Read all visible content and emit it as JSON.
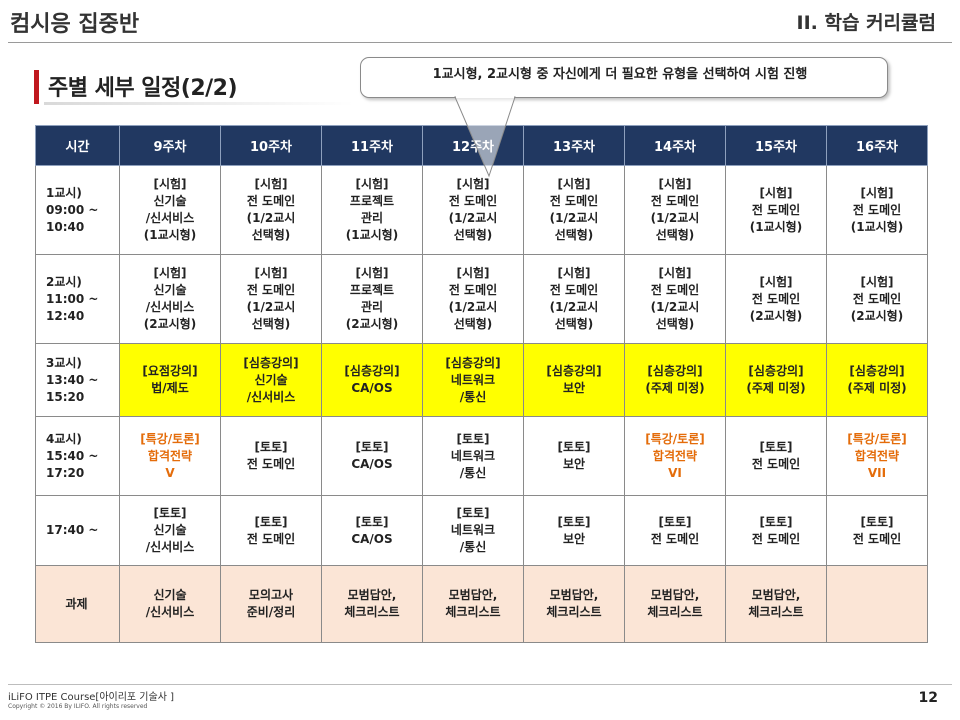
{
  "header": {
    "left_title": "컴시응 집중반",
    "right_title": "II. 학습 커리큘럼"
  },
  "section": {
    "title": "주별 세부 일정(2/2)"
  },
  "callout": {
    "text": "1교시형, 2교시형 중 자신에게 더 필요한 유형을 선택하여 시험 진행"
  },
  "table": {
    "headers": [
      "시간",
      "9주차",
      "10주차",
      "11주차",
      "12주차",
      "13주차",
      "14주차",
      "15주차",
      "16주차"
    ],
    "rows": [
      {
        "time": "1교시)\n  09:00 ~\n    10:40",
        "cells": [
          "[시험]\n신기술\n/신서비스\n(1교시형)",
          "[시험]\n전 도메인\n(1/2교시\n선택형)",
          "[시험]\n프로젝트\n관리\n(1교시형)",
          "[시험]\n전 도메인\n(1/2교시\n선택형)",
          "[시험]\n전 도메인\n(1/2교시\n선택형)",
          "[시험]\n전 도메인\n(1/2교시\n선택형)",
          "[시험]\n전 도메인\n(1교시형)",
          "[시험]\n전 도메인\n(1교시형)"
        ]
      },
      {
        "time": "2교시)\n  11:00 ~\n    12:40",
        "cells": [
          "[시험]\n신기술\n/신서비스\n(2교시형)",
          "[시험]\n전 도메인\n(1/2교시\n선택형)",
          "[시험]\n프로젝트\n관리\n(2교시형)",
          "[시험]\n전 도메인\n(1/2교시\n선택형)",
          "[시험]\n전 도메인\n(1/2교시\n선택형)",
          "[시험]\n전 도메인\n(1/2교시\n선택형)",
          "[시험]\n전 도메인\n(2교시형)",
          "[시험]\n전 도메인\n(2교시형)"
        ]
      },
      {
        "time": "3교시)\n  13:40 ~\n    15:20",
        "cells": [
          "[요점강의]\n법/제도",
          "[심층강의]\n신기술\n/신서비스",
          "[심층강의]\nCA/OS",
          "[심층강의]\n네트워크\n/통신",
          "[심층강의]\n보안",
          "[심층강의]\n(주제 미정)",
          "[심층강의]\n(주제 미정)",
          "[심층강의]\n(주제 미정)"
        ]
      },
      {
        "time": "4교시)\n  15:40 ~\n    17:20",
        "cells": [
          "[특강/토론]\n합격전략\nV",
          "[토토]\n전 도메인",
          "[토토]\nCA/OS",
          "[토토]\n네트워크\n/통신",
          "[토토]\n보안",
          "[특강/토론]\n합격전략\nVI",
          "[토토]\n전 도메인",
          "[특강/토론]\n합격전략\nVII"
        ]
      },
      {
        "time": "17:40 ~",
        "cells": [
          "[토토]\n신기술\n/신서비스",
          "[토토]\n전 도메인",
          "[토토]\nCA/OS",
          "[토토]\n네트워크\n/통신",
          "[토토]\n보안",
          "[토토]\n전 도메인",
          "[토토]\n전 도메인",
          "[토토]\n전 도메인"
        ]
      },
      {
        "time": "과제",
        "cells": [
          "신기술\n/신서비스",
          "모의고사\n준비/정리",
          "모범답안,\n체크리스트",
          "모범답안,\n체크리스트",
          "모범답안,\n체크리스트",
          "모범답안,\n체크리스트",
          "모범답안,\n체크리스트",
          ""
        ]
      }
    ]
  },
  "footer": {
    "course": "iLiFO ITPE Course[아이리포 기술사 ]",
    "copyright": "Copyright © 2016 By ILIFO. All rights reserved",
    "page_number": "12"
  },
  "colors": {
    "header_fill": "#213861",
    "accent_bar": "#c0181e",
    "highlight_yellow": "#ffff00",
    "assignment_fill": "#fbe5d6",
    "special_text": "#e46c0a"
  }
}
